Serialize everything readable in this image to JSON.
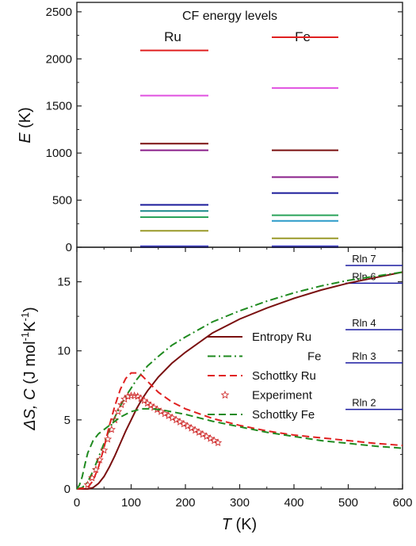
{
  "chart_data": [
    {
      "type": "scatter",
      "title": "CF energy levels",
      "ylabel_italic": "E",
      "ylabel_rest": " (K)",
      "ylim": [
        0,
        2600
      ],
      "yticks": [
        "0",
        "500",
        "1000",
        "1500",
        "2000",
        "2500"
      ],
      "ytick_values": [
        0,
        500,
        1000,
        1500,
        2000,
        2500
      ],
      "columns": [
        {
          "label": "Ru",
          "levels": [
            {
              "value": 0,
              "color": "#1f1fb0"
            },
            {
              "value": 10,
              "color": "#3c3cc8"
            },
            {
              "value": 175,
              "color": "#9a9a2a"
            },
            {
              "value": 320,
              "color": "#2aa35a"
            },
            {
              "value": 385,
              "color": "#1a8a8a"
            },
            {
              "value": 450,
              "color": "#1a1a9a"
            },
            {
              "value": 1030,
              "color": "#8a1f8a"
            },
            {
              "value": 1100,
              "color": "#7a1010"
            },
            {
              "value": 1610,
              "color": "#e050e0"
            },
            {
              "value": 2090,
              "color": "#e02020"
            }
          ]
        },
        {
          "label": "Fe",
          "levels": [
            {
              "value": 0,
              "color": "#1f1fb0"
            },
            {
              "value": 10,
              "color": "#3c3cc8"
            },
            {
              "value": 95,
              "color": "#9a9a2a"
            },
            {
              "value": 280,
              "color": "#2a9ac8"
            },
            {
              "value": 340,
              "color": "#2aa35a"
            },
            {
              "value": 575,
              "color": "#1a1a9a"
            },
            {
              "value": 745,
              "color": "#8a1f8a"
            },
            {
              "value": 1030,
              "color": "#7a1010"
            },
            {
              "value": 1690,
              "color": "#e050e0"
            },
            {
              "value": 2230,
              "color": "#e02020"
            }
          ]
        }
      ]
    },
    {
      "type": "line",
      "xlabel_italic": "T",
      "xlabel_rest": " (K)",
      "ylabel_parts": [
        "ΔS, ",
        "C",
        " (J mol",
        "-1",
        "K",
        "-1",
        ")"
      ],
      "xlim": [
        0,
        600
      ],
      "ylim": [
        0,
        17.5
      ],
      "xticks": [
        "0",
        "100",
        "200",
        "300",
        "400",
        "500",
        "600"
      ],
      "xtick_values": [
        0,
        100,
        200,
        300,
        400,
        500,
        600
      ],
      "yticks": [
        "0",
        "5",
        "10",
        "15"
      ],
      "ytick_values": [
        0,
        5,
        10,
        15
      ],
      "reference_lines": [
        {
          "label": "Rln 7",
          "value": 16.18
        },
        {
          "label": "Rln 6",
          "value": 14.9
        },
        {
          "label": "Rln 4",
          "value": 11.53
        },
        {
          "label": "Rln 3",
          "value": 9.13
        },
        {
          "label": "Rln 2",
          "value": 5.76
        }
      ],
      "reference_color": "#1a1aa0",
      "reference_xrange": [
        495,
        600
      ],
      "series": [
        {
          "name": "Entropy Ru",
          "style": "solid",
          "color": "#7a1010",
          "x": [
            0,
            20,
            30,
            40,
            50,
            60,
            70,
            80,
            90,
            100,
            110,
            120,
            130,
            150,
            175,
            200,
            250,
            300,
            350,
            400,
            450,
            500,
            550,
            600
          ],
          "y": [
            0,
            0,
            0.1,
            0.4,
            0.9,
            1.6,
            2.4,
            3.3,
            4.2,
            5.0,
            5.8,
            6.5,
            7.1,
            8.1,
            9.1,
            9.9,
            11.3,
            12.3,
            13.1,
            13.8,
            14.4,
            14.9,
            15.3,
            15.7
          ]
        },
        {
          "name": "Fe",
          "style": "dashdot",
          "color": "#1f8a1f",
          "x": [
            0,
            10,
            20,
            30,
            40,
            50,
            60,
            70,
            80,
            90,
            100,
            110,
            120,
            130,
            150,
            175,
            200,
            250,
            300,
            350,
            400,
            450,
            500,
            550,
            600
          ],
          "y": [
            0,
            0.1,
            0.5,
            1.3,
            2.3,
            3.3,
            4.3,
            5.2,
            6.0,
            6.7,
            7.3,
            7.9,
            8.4,
            8.9,
            9.6,
            10.4,
            11.0,
            12.1,
            12.9,
            13.6,
            14.2,
            14.7,
            15.1,
            15.4,
            15.7
          ]
        },
        {
          "name": "Schottky Ru",
          "style": "dashed",
          "color": "#e02020",
          "x": [
            0,
            20,
            30,
            40,
            50,
            60,
            70,
            80,
            90,
            100,
            110,
            120,
            130,
            140,
            150,
            175,
            200,
            250,
            300,
            350,
            400,
            450,
            500,
            550,
            600
          ],
          "y": [
            0,
            0.1,
            0.6,
            1.6,
            3.0,
            4.6,
            6.0,
            7.2,
            8.0,
            8.4,
            8.4,
            8.2,
            7.8,
            7.4,
            7.0,
            6.3,
            5.8,
            5.1,
            4.6,
            4.2,
            3.9,
            3.7,
            3.5,
            3.3,
            3.15
          ]
        },
        {
          "name": "Experiment",
          "style": "stars",
          "color": "#d03030",
          "x": [
            20,
            28,
            35,
            42,
            50,
            57,
            64,
            70,
            76,
            82,
            88,
            94,
            100,
            106,
            112,
            118,
            124,
            130,
            136,
            142,
            148,
            155,
            162,
            169,
            176,
            183,
            190,
            197,
            204,
            211,
            218,
            225,
            232,
            239,
            246,
            253,
            260
          ],
          "y": [
            0.3,
            0.8,
            1.4,
            2.1,
            2.8,
            3.6,
            4.3,
            5.0,
            5.6,
            6.1,
            6.5,
            6.7,
            6.75,
            6.75,
            6.7,
            6.55,
            6.4,
            6.2,
            6.05,
            5.9,
            5.75,
            5.6,
            5.45,
            5.3,
            5.15,
            5.0,
            4.85,
            4.7,
            4.55,
            4.4,
            4.25,
            4.1,
            3.95,
            3.8,
            3.65,
            3.5,
            3.35
          ]
        },
        {
          "name": "Schottky Fe",
          "style": "dashed",
          "color": "#1f8a1f",
          "x": [
            0,
            5,
            10,
            15,
            20,
            30,
            40,
            50,
            60,
            80,
            100,
            120,
            140,
            160,
            200,
            250,
            300,
            350,
            400,
            450,
            500,
            550,
            600
          ],
          "y": [
            0,
            0.3,
            0.9,
            1.8,
            2.6,
            3.5,
            4.0,
            4.3,
            4.6,
            5.2,
            5.6,
            5.8,
            5.8,
            5.7,
            5.4,
            4.9,
            4.5,
            4.1,
            3.8,
            3.5,
            3.3,
            3.1,
            2.95
          ]
        }
      ]
    }
  ]
}
